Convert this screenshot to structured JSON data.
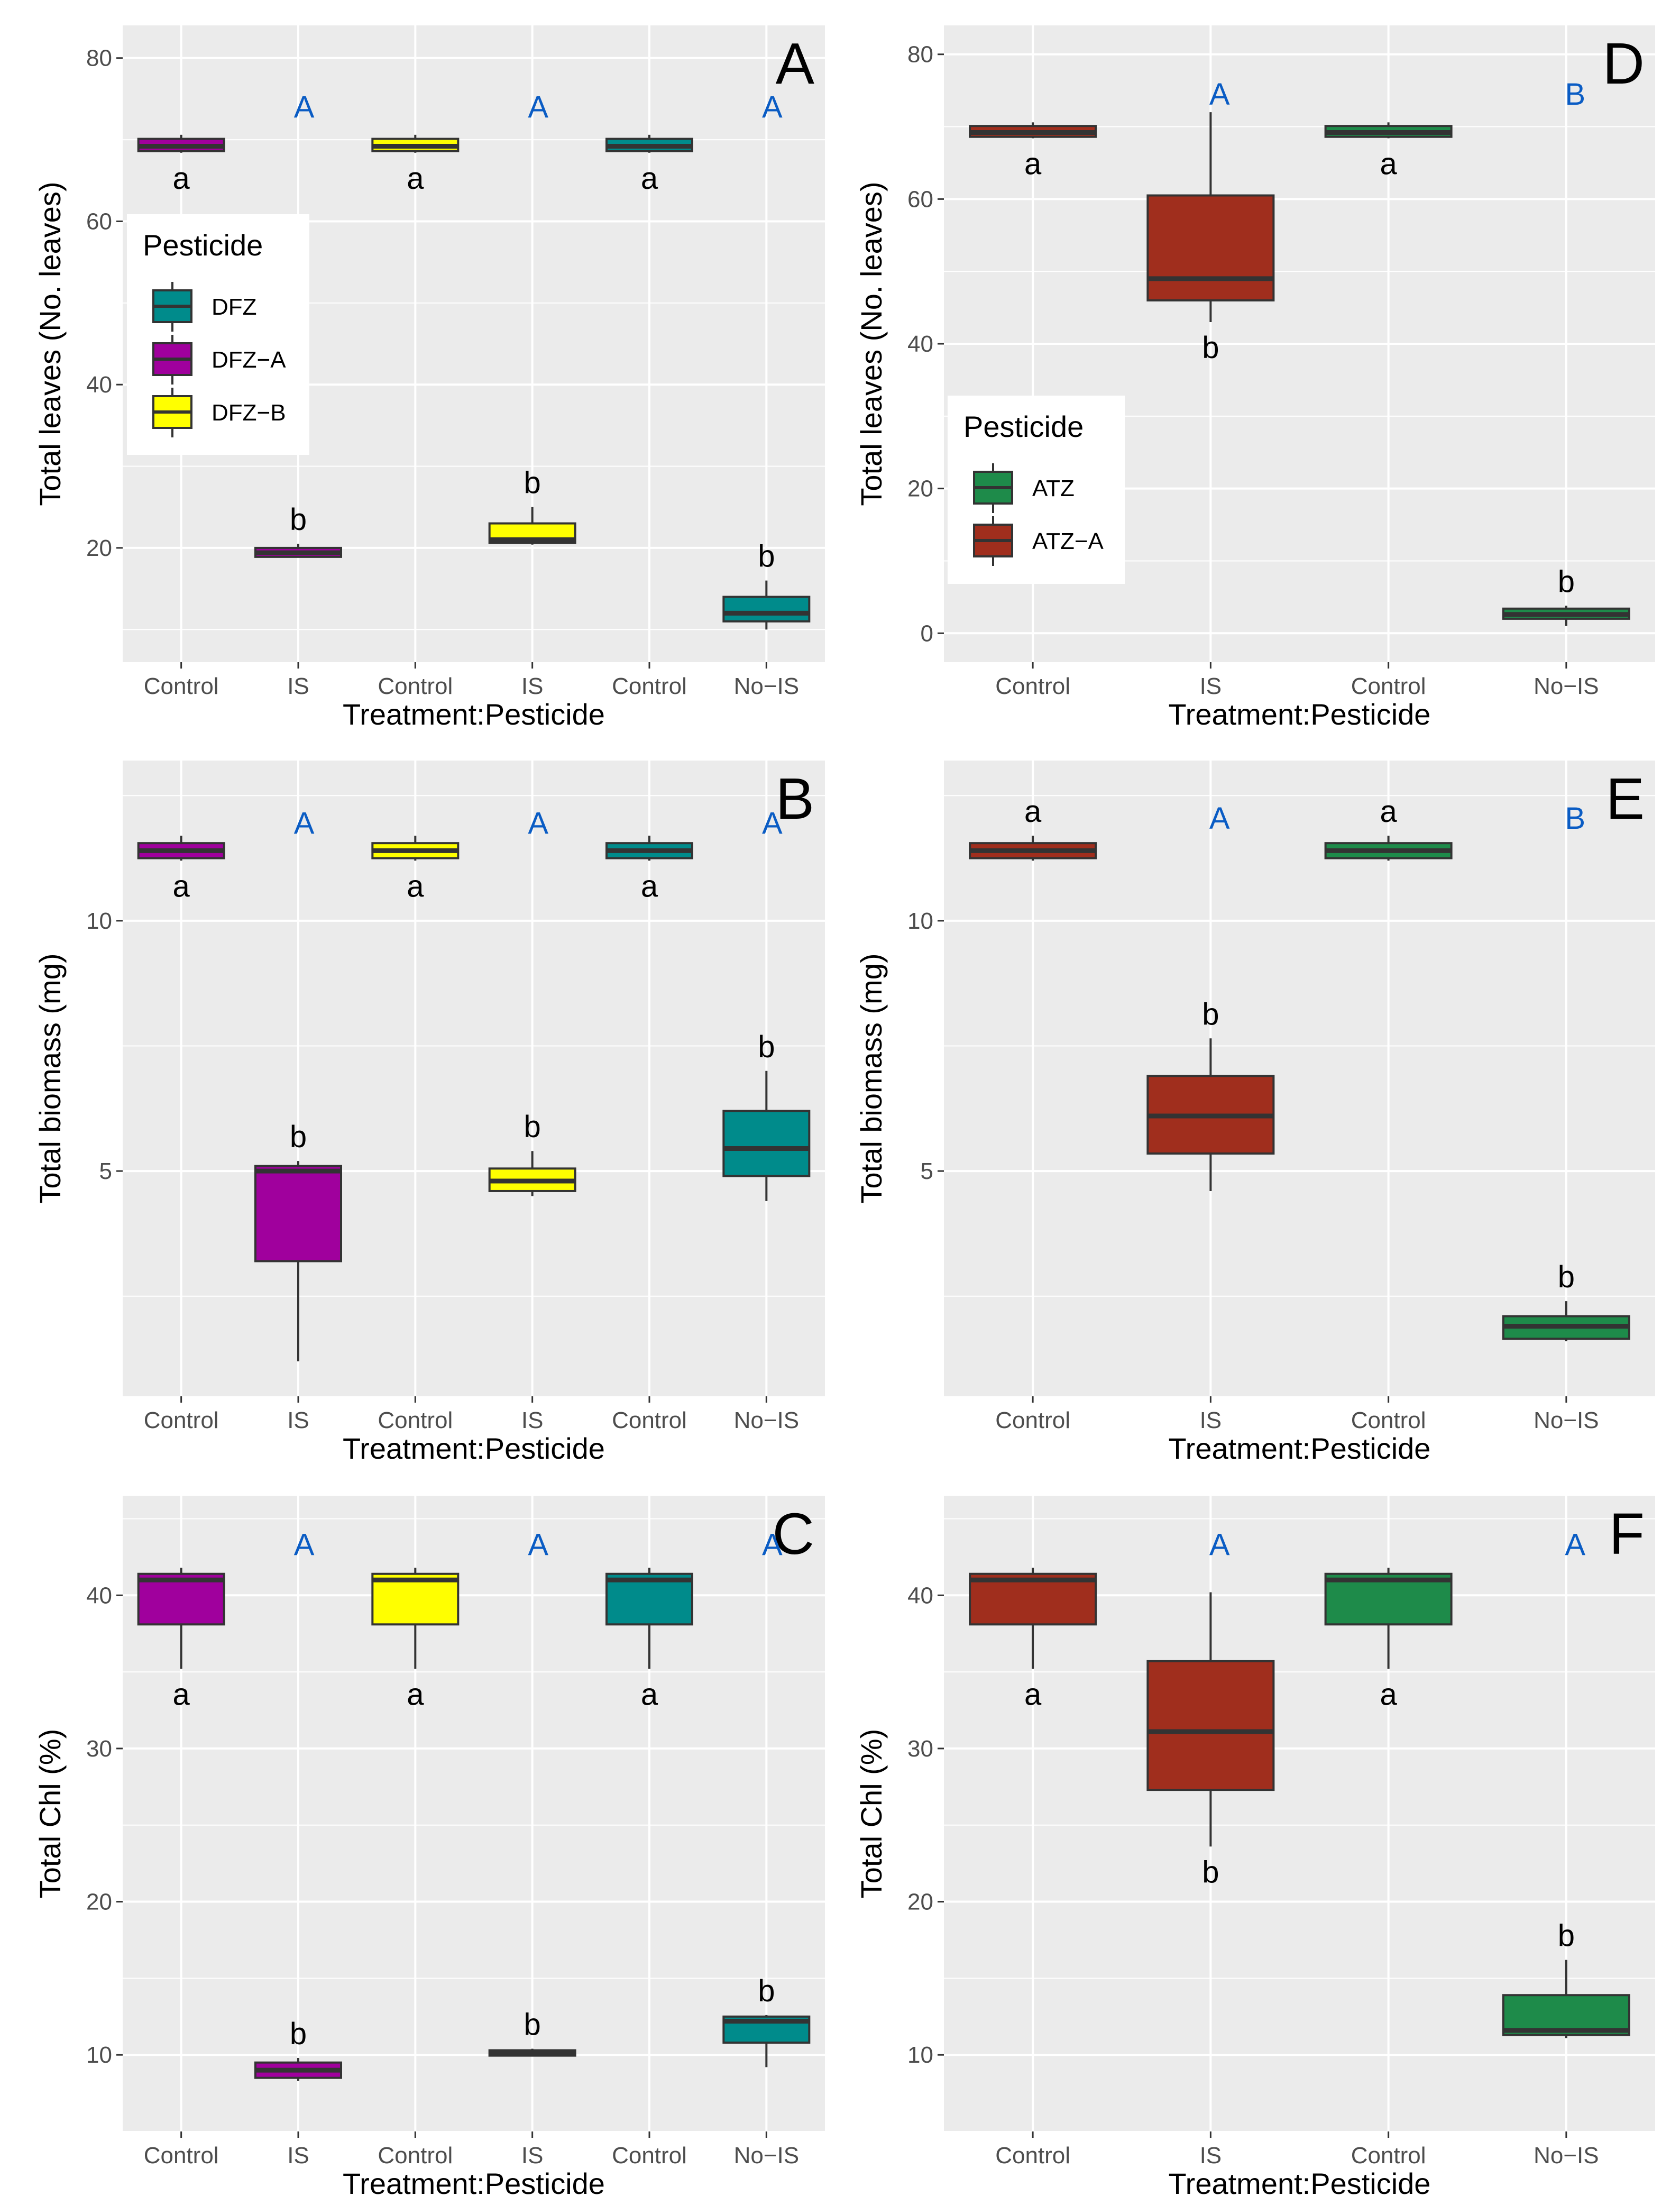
{
  "colors": {
    "panel_bg": "#ebebeb",
    "grid": "#ffffff",
    "box_stroke": "#333333",
    "DFZ": "#008b8b",
    "DFZ-A": "#a0009d",
    "DFZ-B": "#ffff00",
    "ATZ": "#1e8b4a",
    "ATZ-A": "#a02e1d",
    "upper_letter": "#0a5cc4"
  },
  "legends": {
    "A": {
      "title": "Pesticide",
      "items": [
        {
          "label": "DFZ",
          "color": "DFZ"
        },
        {
          "label": "DFZ−A",
          "color": "DFZ-A"
        },
        {
          "label": "DFZ−B",
          "color": "DFZ-B"
        }
      ]
    },
    "D": {
      "title": "Pesticide",
      "items": [
        {
          "label": "ATZ",
          "color": "ATZ"
        },
        {
          "label": "ATZ−A",
          "color": "ATZ-A"
        }
      ]
    }
  },
  "chart_data": [
    {
      "id": "A",
      "letter": "A",
      "type": "box",
      "ylabel": "Total leaves (No. leaves)",
      "xlabel": "Treatment:Pesticide",
      "ylim": [
        6,
        84
      ],
      "yticks": [
        20,
        40,
        60,
        80
      ],
      "categories": [
        "Control",
        "IS",
        "Control",
        "IS",
        "Control",
        "No−IS"
      ],
      "boxes": [
        {
          "cat": 0,
          "series": "DFZ-A",
          "min": 68.4,
          "q1": 68.6,
          "median": 69.2,
          "q3": 70.1,
          "max": 70.6,
          "label": "a",
          "label_pos": "below"
        },
        {
          "cat": 1,
          "series": "DFZ-A",
          "min": 18.8,
          "q1": 18.9,
          "median": 19.4,
          "q3": 20.0,
          "max": 20.5,
          "label": "b",
          "label_pos": "above"
        },
        {
          "cat": 2,
          "series": "DFZ-B",
          "min": 68.4,
          "q1": 68.6,
          "median": 69.2,
          "q3": 70.1,
          "max": 70.6,
          "label": "a",
          "label_pos": "below"
        },
        {
          "cat": 3,
          "series": "DFZ-B",
          "min": 20.4,
          "q1": 20.6,
          "median": 21.0,
          "q3": 23.0,
          "max": 25.0,
          "label": "b",
          "label_pos": "above"
        },
        {
          "cat": 4,
          "series": "DFZ",
          "min": 68.4,
          "q1": 68.6,
          "median": 69.2,
          "q3": 70.1,
          "max": 70.6,
          "label": "a",
          "label_pos": "below"
        },
        {
          "cat": 5,
          "series": "DFZ",
          "min": 10.0,
          "q1": 11.0,
          "median": 12.0,
          "q3": 14.0,
          "max": 16.0,
          "label": "b",
          "label_pos": "above"
        }
      ],
      "group_labels": [
        {
          "text": "A",
          "x": 1.05,
          "y": 74
        },
        {
          "text": "A",
          "x": 3.05,
          "y": 74
        },
        {
          "text": "A",
          "x": 5.05,
          "y": 74
        }
      ]
    },
    {
      "id": "B",
      "letter": "B",
      "type": "box",
      "ylabel": "Total biomass (mg)",
      "xlabel": "Treatment:Pesticide",
      "ylim": [
        0.5,
        13.2
      ],
      "yticks": [
        5,
        10
      ],
      "categories": [
        "Control",
        "IS",
        "Control",
        "IS",
        "Control",
        "No−IS"
      ],
      "boxes": [
        {
          "cat": 0,
          "series": "DFZ-A",
          "min": 11.2,
          "q1": 11.25,
          "median": 11.4,
          "q3": 11.55,
          "max": 11.7,
          "label": "a",
          "label_pos": "below"
        },
        {
          "cat": 1,
          "series": "DFZ-A",
          "min": 1.2,
          "q1": 3.2,
          "median": 5.0,
          "q3": 5.1,
          "max": 5.2,
          "label": "b",
          "label_pos": "above"
        },
        {
          "cat": 2,
          "series": "DFZ-B",
          "min": 11.2,
          "q1": 11.25,
          "median": 11.4,
          "q3": 11.55,
          "max": 11.7,
          "label": "a",
          "label_pos": "below"
        },
        {
          "cat": 3,
          "series": "DFZ-B",
          "min": 4.5,
          "q1": 4.6,
          "median": 4.8,
          "q3": 5.05,
          "max": 5.4,
          "label": "b",
          "label_pos": "above"
        },
        {
          "cat": 4,
          "series": "DFZ",
          "min": 11.2,
          "q1": 11.25,
          "median": 11.4,
          "q3": 11.55,
          "max": 11.7,
          "label": "a",
          "label_pos": "below"
        },
        {
          "cat": 5,
          "series": "DFZ",
          "min": 4.4,
          "q1": 4.9,
          "median": 5.45,
          "q3": 6.2,
          "max": 7.0,
          "label": "b",
          "label_pos": "above"
        }
      ],
      "group_labels": [
        {
          "text": "A",
          "x": 1.05,
          "y": 11.95
        },
        {
          "text": "A",
          "x": 3.05,
          "y": 11.95
        },
        {
          "text": "A",
          "x": 5.05,
          "y": 11.95
        }
      ]
    },
    {
      "id": "C",
      "letter": "C",
      "type": "box",
      "ylabel": "Total Chl (%)",
      "xlabel": "Treatment:Pesticide",
      "ylim": [
        5,
        46.5
      ],
      "yticks": [
        10,
        20,
        30,
        40
      ],
      "categories": [
        "Control",
        "IS",
        "Control",
        "IS",
        "Control",
        "No−IS"
      ],
      "boxes": [
        {
          "cat": 0,
          "series": "DFZ-A",
          "min": 35.2,
          "q1": 38.1,
          "median": 41.0,
          "q3": 41.4,
          "max": 41.8,
          "label": "a",
          "label_pos": "below"
        },
        {
          "cat": 1,
          "series": "DFZ-A",
          "min": 8.3,
          "q1": 8.5,
          "median": 9.0,
          "q3": 9.5,
          "max": 9.8,
          "label": "b",
          "label_pos": "above"
        },
        {
          "cat": 2,
          "series": "DFZ-B",
          "min": 35.2,
          "q1": 38.1,
          "median": 41.0,
          "q3": 41.4,
          "max": 41.8,
          "label": "a",
          "label_pos": "below"
        },
        {
          "cat": 3,
          "series": "DFZ-B",
          "min": 9.9,
          "q1": 9.95,
          "median": 10.1,
          "q3": 10.3,
          "max": 10.4,
          "label": "b",
          "label_pos": "above"
        },
        {
          "cat": 4,
          "series": "DFZ",
          "min": 35.2,
          "q1": 38.1,
          "median": 41.0,
          "q3": 41.4,
          "max": 41.8,
          "label": "a",
          "label_pos": "below"
        },
        {
          "cat": 5,
          "series": "DFZ",
          "min": 9.2,
          "q1": 10.8,
          "median": 12.2,
          "q3": 12.5,
          "max": 12.6,
          "label": "b",
          "label_pos": "above"
        }
      ],
      "group_labels": [
        {
          "text": "A",
          "x": 1.05,
          "y": 43.3
        },
        {
          "text": "A",
          "x": 3.05,
          "y": 43.3
        },
        {
          "text": "A",
          "x": 5.05,
          "y": 43.3
        }
      ]
    },
    {
      "id": "D",
      "letter": "D",
      "type": "box",
      "ylabel": "Total leaves (No. leaves)",
      "xlabel": "Treatment:Pesticide",
      "ylim": [
        -4,
        84
      ],
      "yticks": [
        0,
        20,
        40,
        60,
        80
      ],
      "categories": [
        "Control",
        "IS",
        "Control",
        "No−IS"
      ],
      "boxes": [
        {
          "cat": 0,
          "series": "ATZ-A",
          "min": 68.4,
          "q1": 68.6,
          "median": 69.2,
          "q3": 70.1,
          "max": 70.6,
          "label": "a",
          "label_pos": "below"
        },
        {
          "cat": 1,
          "series": "ATZ-A",
          "min": 43.0,
          "q1": 46.0,
          "median": 49.0,
          "q3": 60.5,
          "max": 72.0,
          "label": "b",
          "label_pos": "below"
        },
        {
          "cat": 2,
          "series": "ATZ",
          "min": 68.4,
          "q1": 68.6,
          "median": 69.2,
          "q3": 70.1,
          "max": 70.6,
          "label": "a",
          "label_pos": "below"
        },
        {
          "cat": 3,
          "series": "ATZ",
          "min": 1.0,
          "q1": 2.0,
          "median": 2.6,
          "q3": 3.4,
          "max": 3.8,
          "label": "b",
          "label_pos": "above"
        }
      ],
      "group_labels": [
        {
          "text": "A",
          "x": 1.05,
          "y": 74.5
        },
        {
          "text": "B",
          "x": 3.05,
          "y": 74.5
        }
      ]
    },
    {
      "id": "E",
      "letter": "E",
      "type": "box",
      "ylabel": "Total biomass (mg)",
      "xlabel": "Treatment:Pesticide",
      "ylim": [
        0.5,
        13.2
      ],
      "yticks": [
        5,
        10
      ],
      "categories": [
        "Control",
        "IS",
        "Control",
        "No−IS"
      ],
      "boxes": [
        {
          "cat": 0,
          "series": "ATZ-A",
          "min": 11.2,
          "q1": 11.25,
          "median": 11.4,
          "q3": 11.55,
          "max": 11.7,
          "label": "a",
          "label_pos": "above"
        },
        {
          "cat": 1,
          "series": "ATZ-A",
          "min": 4.6,
          "q1": 5.35,
          "median": 6.1,
          "q3": 6.9,
          "max": 7.65,
          "label": "b",
          "label_pos": "above"
        },
        {
          "cat": 2,
          "series": "ATZ",
          "min": 11.2,
          "q1": 11.25,
          "median": 11.4,
          "q3": 11.55,
          "max": 11.7,
          "label": "a",
          "label_pos": "above"
        },
        {
          "cat": 3,
          "series": "ATZ",
          "min": 1.6,
          "q1": 1.65,
          "median": 1.9,
          "q3": 2.1,
          "max": 2.4,
          "label": "b",
          "label_pos": "above"
        }
      ],
      "group_labels": [
        {
          "text": "A",
          "x": 1.05,
          "y": 12.05
        },
        {
          "text": "B",
          "x": 3.05,
          "y": 12.05
        }
      ]
    },
    {
      "id": "F",
      "letter": "F",
      "type": "box",
      "ylabel": "Total Chl (%)",
      "xlabel": "Treatment:Pesticide",
      "ylim": [
        5,
        46.5
      ],
      "yticks": [
        10,
        20,
        30,
        40
      ],
      "categories": [
        "Control",
        "IS",
        "Control",
        "No−IS"
      ],
      "boxes": [
        {
          "cat": 0,
          "series": "ATZ-A",
          "min": 35.2,
          "q1": 38.1,
          "median": 41.0,
          "q3": 41.4,
          "max": 41.8,
          "label": "a",
          "label_pos": "below"
        },
        {
          "cat": 1,
          "series": "ATZ-A",
          "min": 23.6,
          "q1": 27.3,
          "median": 31.1,
          "q3": 35.7,
          "max": 40.2,
          "label": "b",
          "label_pos": "below"
        },
        {
          "cat": 2,
          "series": "ATZ",
          "min": 35.2,
          "q1": 38.1,
          "median": 41.0,
          "q3": 41.4,
          "max": 41.8,
          "label": "a",
          "label_pos": "below"
        },
        {
          "cat": 3,
          "series": "ATZ",
          "min": 11.1,
          "q1": 11.3,
          "median": 11.6,
          "q3": 13.9,
          "max": 16.2,
          "label": "b",
          "label_pos": "above"
        }
      ],
      "group_labels": [
        {
          "text": "A",
          "x": 1.05,
          "y": 43.3
        },
        {
          "text": "A",
          "x": 3.05,
          "y": 43.3
        }
      ]
    }
  ]
}
